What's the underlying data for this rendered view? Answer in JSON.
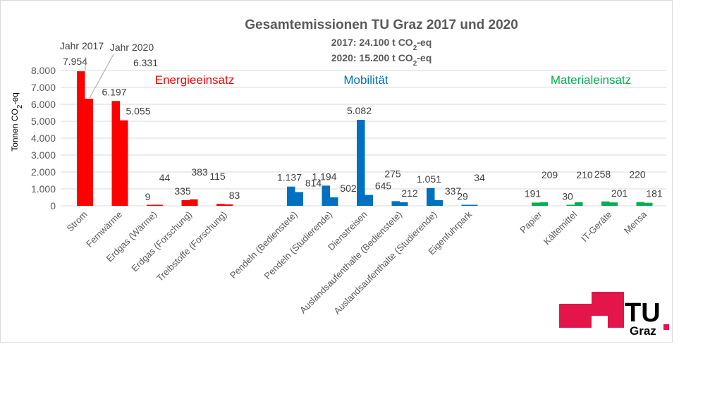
{
  "chart_data": {
    "type": "bar",
    "title": "Gesamtemissionen TU Graz 2017 und 2020",
    "subtitle_lines": [
      {
        "before": "2017: 24.100 t CO",
        "sub": "2",
        "after": "-eq"
      },
      {
        "before": "2020: 15.200 t CO",
        "sub": "2",
        "after": "-eq"
      }
    ],
    "ylabel": {
      "before": "Tonnen CO",
      "sub": "2",
      "after": "-eq"
    },
    "ylim": [
      0,
      8000
    ],
    "yticks": [
      {
        "value": 0,
        "label": "0"
      },
      {
        "value": 1000,
        "label": "1.000"
      },
      {
        "value": 2000,
        "label": "2.000"
      },
      {
        "value": 3000,
        "label": "3.000"
      },
      {
        "value": 4000,
        "label": "4.000"
      },
      {
        "value": 5000,
        "label": "5.000"
      },
      {
        "value": 6000,
        "label": "6.000"
      },
      {
        "value": 7000,
        "label": "7.000"
      },
      {
        "value": 8000,
        "label": "8.000"
      }
    ],
    "grid": true,
    "series": [
      {
        "name": "Jahr 2017"
      },
      {
        "name": "Jahr 2020"
      }
    ],
    "groups": [
      {
        "name": "Energieeinsatz",
        "color": "#ff0000",
        "categories": [
          {
            "label": "Strom",
            "values": [
              7954,
              6331
            ],
            "labels": [
              "7.954",
              "6.331"
            ]
          },
          {
            "label": "Fernwärme",
            "values": [
              6197,
              5055
            ],
            "labels": [
              "6.197",
              "5.055"
            ]
          },
          {
            "label": "Erdgas (Wärme)",
            "values": [
              9,
              44
            ],
            "labels": [
              "9",
              "44"
            ]
          },
          {
            "label": "Erdgas (Forschung)",
            "values": [
              335,
              383
            ],
            "labels": [
              "335",
              "383"
            ]
          },
          {
            "label": "Treibstoffe (Forschung)",
            "values": [
              115,
              83
            ],
            "labels": [
              "115",
              "83"
            ]
          }
        ]
      },
      {
        "name": "Mobilität",
        "color": "#0070c0",
        "categories": [
          {
            "label": "Pendeln (Bedienstete)",
            "values": [
              1137,
              814
            ],
            "labels": [
              "1.137",
              "814"
            ]
          },
          {
            "label": "Pendeln (Studierende)",
            "values": [
              1194,
              502
            ],
            "labels": [
              "1.194",
              "502"
            ]
          },
          {
            "label": "Dienstreisen",
            "values": [
              5082,
              645
            ],
            "labels": [
              "5.082",
              "645"
            ]
          },
          {
            "label": "Auslandsaufenthalte (Bedienstete)",
            "values": [
              275,
              212
            ],
            "labels": [
              "275",
              "212"
            ]
          },
          {
            "label": "Auslandsaufenthalte (Studierende)",
            "values": [
              1051,
              337
            ],
            "labels": [
              "1.051",
              "337"
            ]
          },
          {
            "label": "Eigenfuhrpark",
            "values": [
              29,
              34
            ],
            "labels": [
              "29",
              "34"
            ]
          }
        ]
      },
      {
        "name": "Materialeinsatz",
        "color": "#00b050",
        "categories": [
          {
            "label": "Papier",
            "values": [
              191,
              209
            ],
            "labels": [
              "191",
              "209"
            ]
          },
          {
            "label": "Kältemittel",
            "values": [
              30,
              210
            ],
            "labels": [
              "30",
              "210"
            ]
          },
          {
            "label": "IT-Geräte",
            "values": [
              258,
              201
            ],
            "labels": [
              "258",
              "201"
            ]
          },
          {
            "label": "Mensa",
            "values": [
              220,
              181
            ],
            "labels": [
              "220",
              "181"
            ]
          }
        ]
      }
    ]
  },
  "logo": {
    "text_main": "TU",
    "text_sub": "Graz",
    "color_red": "#e4154b",
    "color_text": "#000000"
  }
}
